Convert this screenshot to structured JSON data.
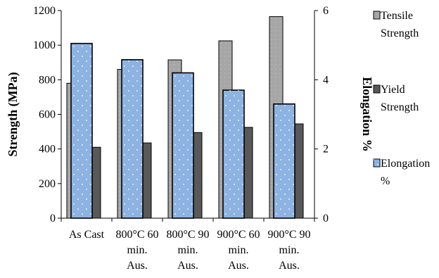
{
  "chart_data": {
    "type": "bar",
    "categories": [
      [
        "As Cast"
      ],
      [
        "800°C 60",
        "min.",
        "Aus."
      ],
      [
        "800°C 90",
        "min.",
        "Aus."
      ],
      [
        "900°C 60",
        "min.",
        "Aus."
      ],
      [
        "900°C 90",
        "min.",
        "Aus."
      ]
    ],
    "series": [
      {
        "name": [
          "Tensile",
          "Strength"
        ],
        "axis": "left",
        "values": [
          780,
          860,
          915,
          1025,
          1165
        ],
        "color": "#a6a6a6"
      },
      {
        "name": [
          "Yield",
          "Strength"
        ],
        "axis": "left",
        "values": [
          410,
          435,
          495,
          525,
          545
        ],
        "color": "#595959"
      },
      {
        "name": [
          "Elongation",
          "%"
        ],
        "axis": "right",
        "values": [
          5.05,
          4.58,
          4.2,
          3.7,
          3.3
        ],
        "color": "#8db3e2"
      }
    ],
    "ylabel": "Strength (MPa)",
    "y2label": "Elongation %",
    "ylim": [
      0,
      1200
    ],
    "y2lim": [
      0,
      6
    ],
    "yticks": [
      0,
      200,
      400,
      600,
      800,
      1000,
      1200
    ],
    "y2ticks": [
      0,
      2,
      4,
      6
    ],
    "grid": false,
    "legend": "right"
  }
}
